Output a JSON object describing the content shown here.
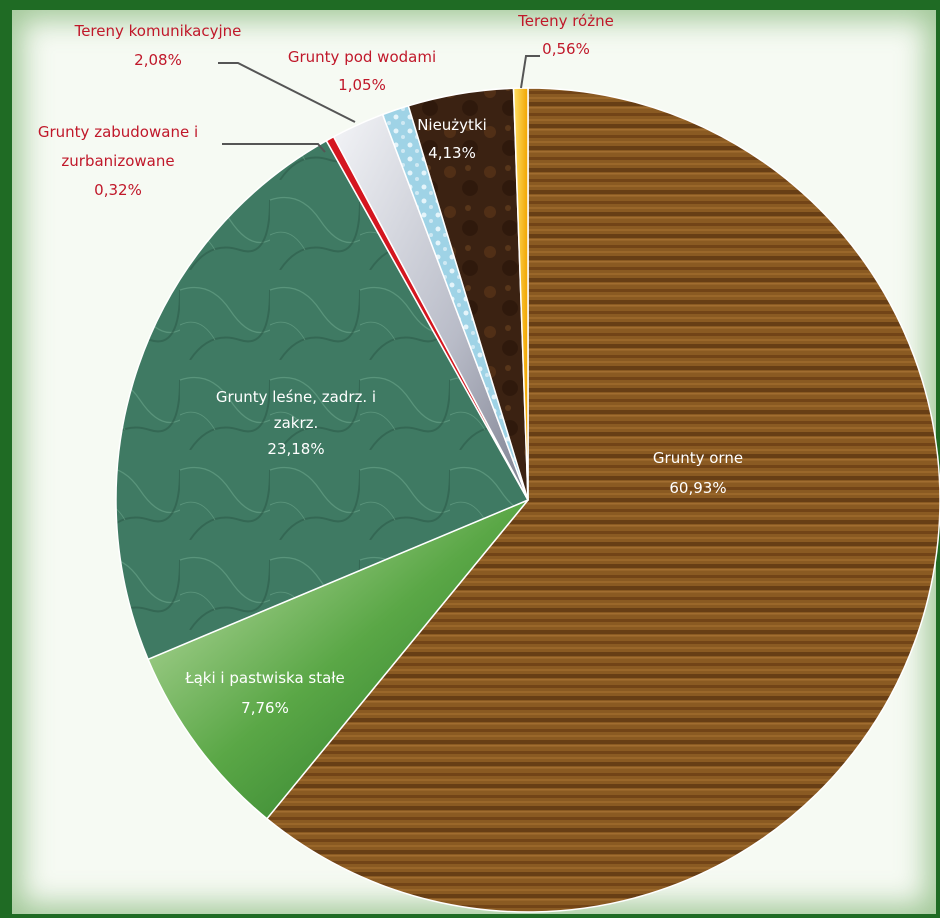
{
  "chart_data": {
    "type": "pie",
    "title": "",
    "slices": [
      {
        "label": "Grunty orne",
        "pct_text": "60,93%",
        "value": 60.93,
        "color": "#8a5a22"
      },
      {
        "label": "Łąki i pastwiska  stałe",
        "pct_text": "7,76%",
        "value": 7.76,
        "color": "#4f9a3e"
      },
      {
        "label": "Grunty leśne, zadrz. i zakrz.",
        "pct_text": "23,18%",
        "value": 23.18,
        "color": "#3f7a63"
      },
      {
        "label": "Grunty zabudowane  i zurbanizowane",
        "pct_text": "0,32%",
        "value": 0.32,
        "color": "#d4161f"
      },
      {
        "label": "Tereny komunikacyjne",
        "pct_text": "2,08%",
        "value": 2.08,
        "color": "#c7cad4"
      },
      {
        "label": "Grunty pod wodami",
        "pct_text": "1,05%",
        "value": 1.05,
        "color": "#9fd3e6"
      },
      {
        "label": "Nieużytki",
        "pct_text": "4,13%",
        "value": 4.13,
        "color": "#3b2212"
      },
      {
        "label": "Tereny różne",
        "pct_text": "0,56%",
        "value": 0.56,
        "color": "#f5c800"
      }
    ],
    "label_color": "#c0182a",
    "frame_color": "#1f6b24"
  }
}
